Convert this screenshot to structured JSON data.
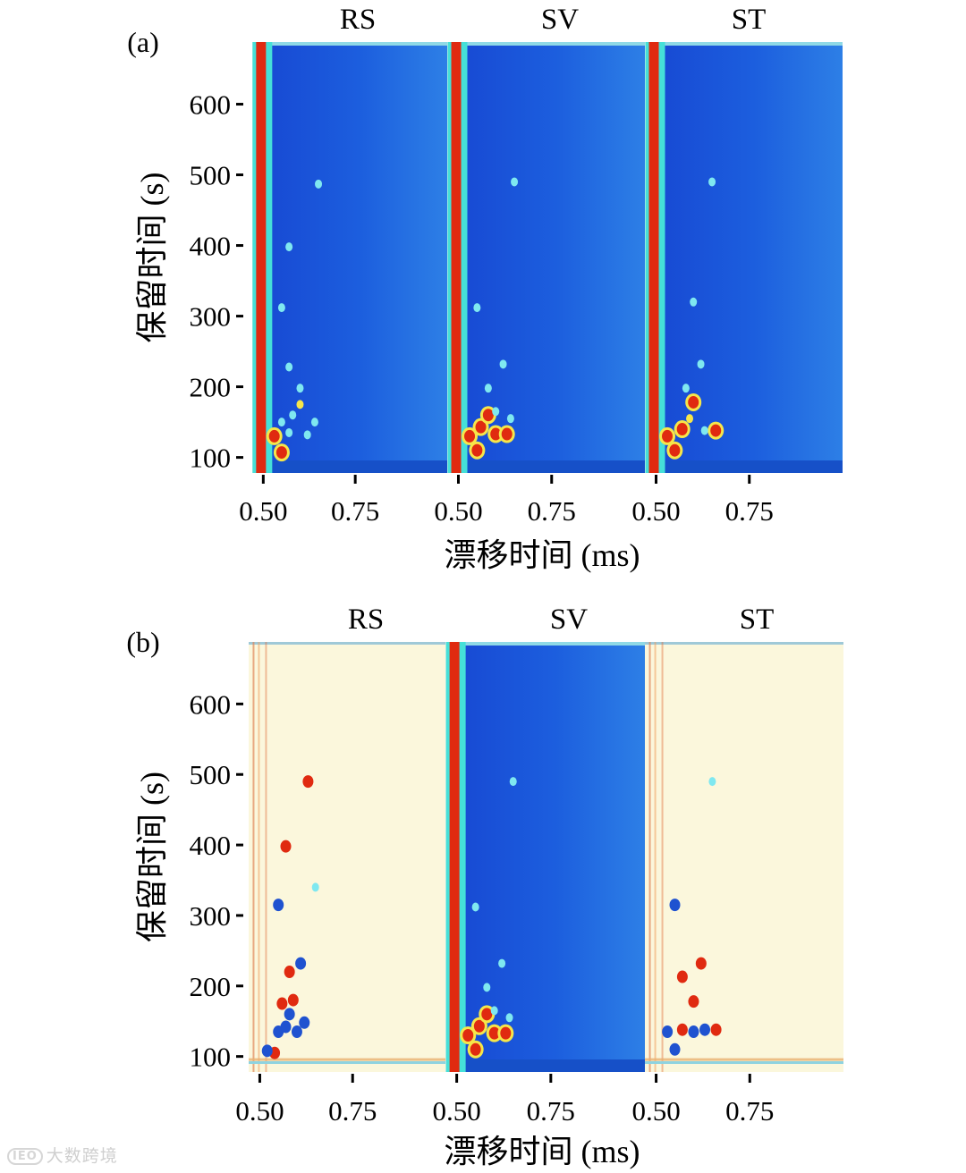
{
  "chart_data": [
    {
      "type": "heatmap",
      "panel_label": "(a)",
      "xlabel": "漂移时间 (ms)",
      "ylabel": "保留时间 (s)",
      "yticks": [
        100,
        200,
        300,
        400,
        500,
        600
      ],
      "xticks": [
        "0.50",
        "0.75"
      ],
      "ylim": [
        78,
        688
      ],
      "xlim": [
        0.47,
        1.0
      ],
      "reactant_ion_peak_drift_ms": 0.5,
      "subpanels": [
        {
          "title": "RS",
          "style": "raw",
          "peaks": [
            {
              "x": 0.53,
              "y": 130,
              "c": "red"
            },
            {
              "x": 0.55,
              "y": 107,
              "c": "red"
            },
            {
              "x": 0.55,
              "y": 150,
              "c": "cyan"
            },
            {
              "x": 0.57,
              "y": 135,
              "c": "cyan"
            },
            {
              "x": 0.58,
              "y": 160,
              "c": "cyan"
            },
            {
              "x": 0.6,
              "y": 175,
              "c": "yellow"
            },
            {
              "x": 0.6,
              "y": 198,
              "c": "cyan"
            },
            {
              "x": 0.62,
              "y": 132,
              "c": "cyan"
            },
            {
              "x": 0.64,
              "y": 150,
              "c": "cyan"
            },
            {
              "x": 0.57,
              "y": 228,
              "c": "cyan"
            },
            {
              "x": 0.57,
              "y": 398,
              "c": "cyan"
            },
            {
              "x": 0.55,
              "y": 312,
              "c": "cyan"
            },
            {
              "x": 0.65,
              "y": 487,
              "c": "cyan"
            }
          ]
        },
        {
          "title": "SV",
          "style": "raw",
          "peaks": [
            {
              "x": 0.53,
              "y": 130,
              "c": "red"
            },
            {
              "x": 0.55,
              "y": 110,
              "c": "red"
            },
            {
              "x": 0.56,
              "y": 143,
              "c": "red"
            },
            {
              "x": 0.58,
              "y": 160,
              "c": "red"
            },
            {
              "x": 0.6,
              "y": 133,
              "c": "red"
            },
            {
              "x": 0.63,
              "y": 133,
              "c": "red"
            },
            {
              "x": 0.58,
              "y": 198,
              "c": "cyan"
            },
            {
              "x": 0.6,
              "y": 165,
              "c": "cyan"
            },
            {
              "x": 0.64,
              "y": 155,
              "c": "cyan"
            },
            {
              "x": 0.55,
              "y": 312,
              "c": "cyan"
            },
            {
              "x": 0.62,
              "y": 232,
              "c": "cyan"
            },
            {
              "x": 0.65,
              "y": 490,
              "c": "cyan"
            }
          ]
        },
        {
          "title": "ST",
          "style": "raw",
          "peaks": [
            {
              "x": 0.53,
              "y": 130,
              "c": "red"
            },
            {
              "x": 0.55,
              "y": 110,
              "c": "red"
            },
            {
              "x": 0.57,
              "y": 140,
              "c": "red"
            },
            {
              "x": 0.6,
              "y": 178,
              "c": "red"
            },
            {
              "x": 0.66,
              "y": 138,
              "c": "red"
            },
            {
              "x": 0.59,
              "y": 155,
              "c": "yellow"
            },
            {
              "x": 0.58,
              "y": 198,
              "c": "cyan"
            },
            {
              "x": 0.63,
              "y": 138,
              "c": "cyan"
            },
            {
              "x": 0.62,
              "y": 232,
              "c": "cyan"
            },
            {
              "x": 0.6,
              "y": 320,
              "c": "cyan"
            },
            {
              "x": 0.65,
              "y": 490,
              "c": "cyan"
            }
          ]
        }
      ]
    },
    {
      "type": "heatmap",
      "panel_label": "(b)",
      "xlabel": "漂移时间 (ms)",
      "ylabel": "保留时间 (s)",
      "yticks": [
        100,
        200,
        300,
        400,
        500,
        600
      ],
      "xticks": [
        "0.50",
        "0.75"
      ],
      "ylim": [
        78,
        688
      ],
      "xlim": [
        0.47,
        1.0
      ],
      "reactant_ion_peak_drift_ms": 0.5,
      "subpanels": [
        {
          "title": "RS",
          "style": "difference",
          "peaks": [
            {
              "x": 0.54,
              "y": 105,
              "c": "red"
            },
            {
              "x": 0.52,
              "y": 108,
              "c": "blue"
            },
            {
              "x": 0.55,
              "y": 135,
              "c": "blue"
            },
            {
              "x": 0.57,
              "y": 142,
              "c": "blue"
            },
            {
              "x": 0.58,
              "y": 160,
              "c": "blue"
            },
            {
              "x": 0.6,
              "y": 135,
              "c": "blue"
            },
            {
              "x": 0.62,
              "y": 148,
              "c": "blue"
            },
            {
              "x": 0.56,
              "y": 175,
              "c": "red"
            },
            {
              "x": 0.59,
              "y": 180,
              "c": "red"
            },
            {
              "x": 0.57,
              "y": 398,
              "c": "red"
            },
            {
              "x": 0.55,
              "y": 315,
              "c": "blue"
            },
            {
              "x": 0.61,
              "y": 232,
              "c": "blue"
            },
            {
              "x": 0.63,
              "y": 490,
              "c": "red"
            },
            {
              "x": 0.58,
              "y": 220,
              "c": "red"
            },
            {
              "x": 0.65,
              "y": 340,
              "c": "cyan"
            }
          ]
        },
        {
          "title": "SV",
          "style": "raw",
          "peaks": [
            {
              "x": 0.53,
              "y": 130,
              "c": "red"
            },
            {
              "x": 0.55,
              "y": 110,
              "c": "red"
            },
            {
              "x": 0.56,
              "y": 143,
              "c": "red"
            },
            {
              "x": 0.58,
              "y": 160,
              "c": "red"
            },
            {
              "x": 0.6,
              "y": 133,
              "c": "red"
            },
            {
              "x": 0.63,
              "y": 133,
              "c": "red"
            },
            {
              "x": 0.58,
              "y": 198,
              "c": "cyan"
            },
            {
              "x": 0.6,
              "y": 165,
              "c": "cyan"
            },
            {
              "x": 0.64,
              "y": 155,
              "c": "cyan"
            },
            {
              "x": 0.55,
              "y": 312,
              "c": "cyan"
            },
            {
              "x": 0.62,
              "y": 232,
              "c": "cyan"
            },
            {
              "x": 0.65,
              "y": 490,
              "c": "cyan"
            }
          ]
        },
        {
          "title": "ST",
          "style": "difference",
          "peaks": [
            {
              "x": 0.55,
              "y": 110,
              "c": "blue"
            },
            {
              "x": 0.53,
              "y": 135,
              "c": "blue"
            },
            {
              "x": 0.57,
              "y": 138,
              "c": "red"
            },
            {
              "x": 0.6,
              "y": 135,
              "c": "blue"
            },
            {
              "x": 0.63,
              "y": 138,
              "c": "blue"
            },
            {
              "x": 0.66,
              "y": 138,
              "c": "red"
            },
            {
              "x": 0.6,
              "y": 178,
              "c": "red"
            },
            {
              "x": 0.57,
              "y": 213,
              "c": "red"
            },
            {
              "x": 0.55,
              "y": 315,
              "c": "blue"
            },
            {
              "x": 0.62,
              "y": 232,
              "c": "red"
            },
            {
              "x": 0.65,
              "y": 490,
              "c": "cyan"
            }
          ]
        }
      ]
    }
  ],
  "colors": {
    "raw_background": "#1a63e0",
    "raw_background_dark": "#1650c8",
    "reactant_peak": "#e02a10",
    "halo": "#45e0d8",
    "difference_background": "#fbf7dc",
    "difference_red": "#d83218",
    "difference_blue": "#1f52d0",
    "cyan": "#7fe8f0",
    "yellow": "#f6e64a"
  },
  "watermark": "大数跨境"
}
